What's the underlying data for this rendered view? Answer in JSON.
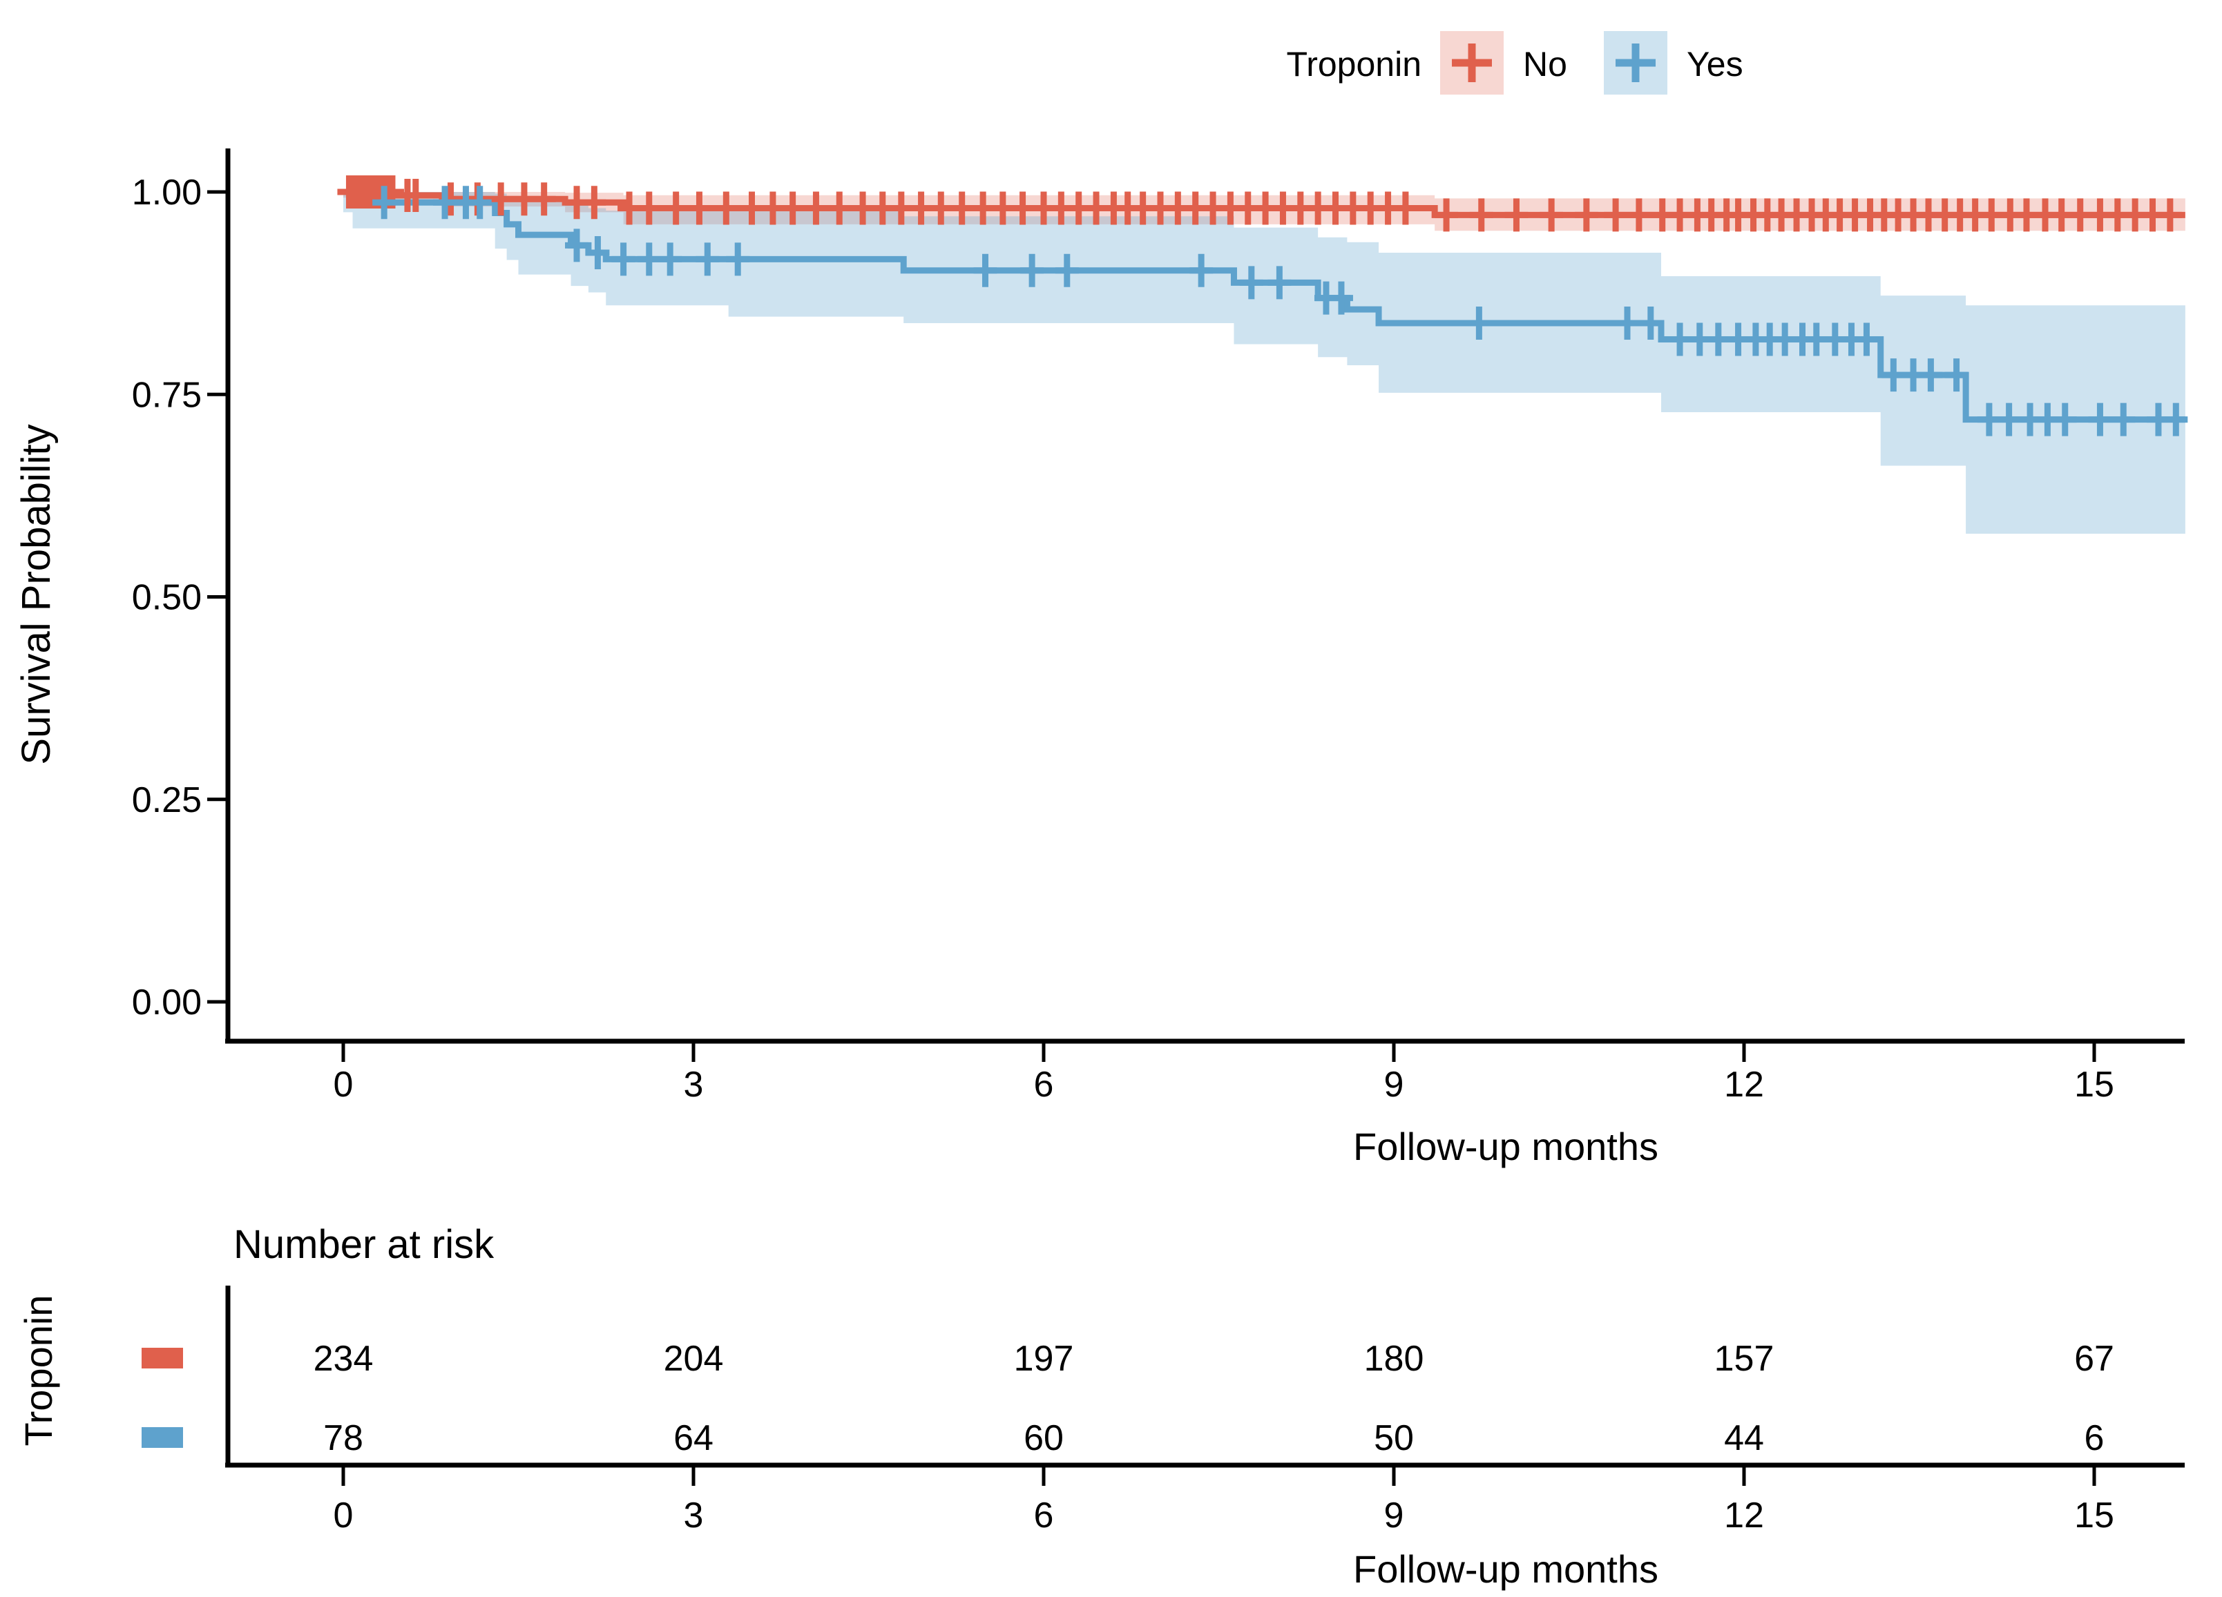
{
  "colors": {
    "red": "#E0604C",
    "blue": "#5EA2CD",
    "red_fill": "rgba(224,96,76,0.25)",
    "blue_fill": "rgba(94,162,205,0.30)",
    "axis": "#000000"
  },
  "legend": {
    "title": "Troponin",
    "items": [
      {
        "label": "No",
        "color": "#E0604C"
      },
      {
        "label": "Yes",
        "color": "#5EA2CD"
      }
    ]
  },
  "y_axis": {
    "title": "Survival Probability",
    "ticks": [
      "1.00",
      "0.75",
      "0.50",
      "0.25",
      "0.00"
    ],
    "tick_values": [
      1.0,
      0.75,
      0.5,
      0.25,
      0.0
    ]
  },
  "x_axis": {
    "title": "Follow-up months",
    "ticks": [
      "0",
      "3",
      "6",
      "9",
      "12",
      "15"
    ],
    "tick_values": [
      0,
      3,
      6,
      9,
      12,
      15
    ]
  },
  "chart_data": {
    "type": "line",
    "subtype": "kaplan-meier-step",
    "title": "",
    "xlabel": "Follow-up months",
    "ylabel": "Survival Probability",
    "xlim": [
      -1,
      15.78
    ],
    "ylim": [
      -0.05,
      1.05
    ],
    "x_ticks": [
      0,
      3,
      6,
      9,
      12,
      15
    ],
    "y_ticks": [
      1.0,
      0.75,
      0.5,
      0.25,
      0.0
    ],
    "grid": false,
    "legend_position": "top",
    "series": [
      {
        "name": "No",
        "color": "#E0604C",
        "fill": "rgba(224,96,76,0.25)",
        "start_surv": 1.0,
        "step_times": [
          0.45,
          0.85,
          1.9,
          2.4,
          9.35
        ],
        "step_surv": [
          0.9957,
          0.9913,
          0.987,
          0.98,
          0.9715
        ],
        "end_time": 15.78,
        "censor_times": [
          0.05,
          0.09,
          0.13,
          0.17,
          0.21,
          0.25,
          0.29,
          0.33,
          0.38,
          0.42,
          0.55,
          0.62,
          0.92,
          1.15,
          1.35,
          1.55,
          1.72,
          2.0,
          2.15,
          2.45,
          2.62,
          2.85,
          3.05,
          3.28,
          3.5,
          3.68,
          3.85,
          4.05,
          4.25,
          4.45,
          4.62,
          4.78,
          4.95,
          5.12,
          5.3,
          5.48,
          5.65,
          5.82,
          6.0,
          6.15,
          6.3,
          6.45,
          6.6,
          6.72,
          6.85,
          7.0,
          7.15,
          7.3,
          7.45,
          7.6,
          7.75,
          7.9,
          8.05,
          8.2,
          8.35,
          8.5,
          8.65,
          8.8,
          8.95,
          9.1,
          9.45,
          9.75,
          10.05,
          10.35,
          10.65,
          10.9,
          11.1,
          11.3,
          11.45,
          11.6,
          11.72,
          11.85,
          11.95,
          12.08,
          12.2,
          12.32,
          12.45,
          12.58,
          12.7,
          12.82,
          12.95,
          13.08,
          13.2,
          13.32,
          13.45,
          13.58,
          13.72,
          13.85,
          13.98,
          14.12,
          14.28,
          14.42,
          14.58,
          14.72,
          14.88,
          15.05,
          15.2,
          15.35,
          15.5,
          15.65
        ],
        "ci": [
          {
            "t0": 0,
            "t1": 0.45,
            "upper": 1.0,
            "lower": 0.993
          },
          {
            "t0": 0.45,
            "t1": 0.85,
            "upper": 1.0,
            "lower": 0.988
          },
          {
            "t0": 0.85,
            "t1": 1.9,
            "upper": 1.0,
            "lower": 0.982
          },
          {
            "t0": 1.9,
            "t1": 2.4,
            "upper": 0.999,
            "lower": 0.975
          },
          {
            "t0": 2.4,
            "t1": 9.35,
            "upper": 0.996,
            "lower": 0.96
          },
          {
            "t0": 9.35,
            "t1": 15.78,
            "upper": 0.992,
            "lower": 0.952
          }
        ]
      },
      {
        "name": "Yes",
        "color": "#5EA2CD",
        "fill": "rgba(94,162,205,0.30)",
        "start_surv": 1.0,
        "step_times": [
          0.08,
          1.3,
          1.4,
          1.5,
          1.95,
          2.1,
          2.25,
          4.8,
          7.63,
          8.35,
          8.6,
          8.87,
          11.29,
          13.17,
          13.9
        ],
        "step_surv": [
          0.987,
          0.974,
          0.96,
          0.947,
          0.934,
          0.925,
          0.917,
          0.903,
          0.888,
          0.869,
          0.855,
          0.838,
          0.818,
          0.774,
          0.719
        ],
        "end_time": 15.78,
        "censor_times": [
          0.35,
          0.87,
          1.05,
          1.17,
          2.0,
          2.18,
          2.4,
          2.62,
          2.8,
          3.12,
          3.38,
          5.5,
          5.9,
          6.2,
          7.35,
          7.78,
          8.02,
          8.42,
          8.55,
          9.73,
          11.0,
          11.2,
          11.45,
          11.62,
          11.78,
          11.95,
          12.1,
          12.22,
          12.35,
          12.5,
          12.62,
          12.78,
          12.92,
          13.05,
          13.28,
          13.45,
          13.6,
          13.82,
          14.1,
          14.27,
          14.45,
          14.6,
          14.75,
          15.05,
          15.25,
          15.55,
          15.7
        ],
        "ci": [
          {
            "t0": 0,
            "t1": 0.08,
            "upper": 1.0,
            "lower": 0.975
          },
          {
            "t0": 0.08,
            "t1": 1.3,
            "upper": 1.0,
            "lower": 0.955
          },
          {
            "t0": 1.3,
            "t1": 1.4,
            "upper": 0.998,
            "lower": 0.93
          },
          {
            "t0": 1.4,
            "t1": 1.5,
            "upper": 0.994,
            "lower": 0.916
          },
          {
            "t0": 1.5,
            "t1": 1.95,
            "upper": 0.99,
            "lower": 0.898
          },
          {
            "t0": 1.95,
            "t1": 2.1,
            "upper": 0.984,
            "lower": 0.884
          },
          {
            "t0": 2.1,
            "t1": 2.25,
            "upper": 0.98,
            "lower": 0.876
          },
          {
            "t0": 2.25,
            "t1": 3.3,
            "upper": 0.977,
            "lower": 0.86
          },
          {
            "t0": 3.3,
            "t1": 4.8,
            "upper": 0.977,
            "lower": 0.846
          },
          {
            "t0": 4.8,
            "t1": 7.63,
            "upper": 0.97,
            "lower": 0.838
          },
          {
            "t0": 7.63,
            "t1": 8.35,
            "upper": 0.956,
            "lower": 0.812
          },
          {
            "t0": 8.35,
            "t1": 8.6,
            "upper": 0.944,
            "lower": 0.796
          },
          {
            "t0": 8.6,
            "t1": 8.87,
            "upper": 0.938,
            "lower": 0.786
          },
          {
            "t0": 8.87,
            "t1": 11.29,
            "upper": 0.925,
            "lower": 0.752
          },
          {
            "t0": 11.29,
            "t1": 13.17,
            "upper": 0.896,
            "lower": 0.728
          },
          {
            "t0": 13.17,
            "t1": 13.9,
            "upper": 0.872,
            "lower": 0.662
          },
          {
            "t0": 13.9,
            "t1": 15.78,
            "upper": 0.86,
            "lower": 0.578
          }
        ]
      }
    ]
  },
  "risk_table": {
    "title": "Number at risk",
    "group_label": "Troponin",
    "x_title": "Follow-up months",
    "x_ticks": [
      "0",
      "3",
      "6",
      "9",
      "12",
      "15"
    ],
    "x_tick_values": [
      0,
      3,
      6,
      9,
      12,
      15
    ],
    "rows": [
      {
        "name": "No",
        "color": "#E0604C",
        "values": [
          "234",
          "204",
          "197",
          "180",
          "157",
          "67"
        ]
      },
      {
        "name": "Yes",
        "color": "#5EA2CD",
        "values": [
          "78",
          "64",
          "60",
          "50",
          "44",
          "6"
        ]
      }
    ]
  }
}
